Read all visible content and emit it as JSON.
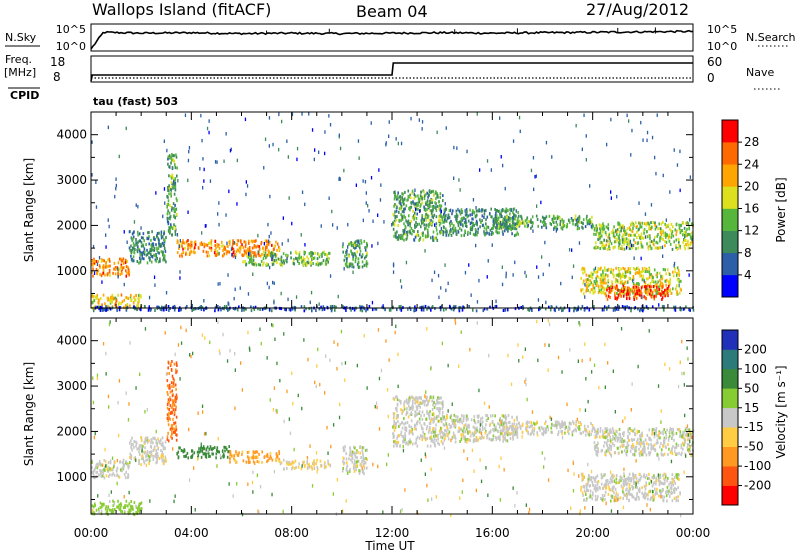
{
  "header": {
    "station": "Wallops Island (fitACF)",
    "beam": "Beam 04",
    "date": "27/Aug/2012"
  },
  "strip": {
    "left_label_1": "N.Sky",
    "right_label_1": "N.Search",
    "left_label_2a": "Freq.",
    "left_label_2b": "[MHz]",
    "cpid_label": "CPID",
    "right_label_2": "Nave",
    "noise_ticks_left": [
      "10^5",
      "10^0"
    ],
    "noise_ticks_right": [
      "10^5",
      "10^0"
    ],
    "freq_ticks": [
      "18",
      "8"
    ],
    "nave_ticks": [
      "60",
      "0"
    ],
    "cpid_text": "tau (fast) 503"
  },
  "axes": {
    "xlabel": "Time UT",
    "ylabel": "Slant Range [km]",
    "x_ticks": [
      "00:00",
      "04:00",
      "08:00",
      "12:00",
      "16:00",
      "20:00",
      "00:00"
    ],
    "y_ticks": [
      "1000",
      "2000",
      "3000",
      "4000"
    ]
  },
  "colorbars": {
    "power": {
      "label": "Power [dB]",
      "ticks": [
        "4",
        "8",
        "12",
        "16",
        "20",
        "24",
        "28"
      ],
      "colors": [
        "#0000ff",
        "#2c5fa8",
        "#3d8a5a",
        "#56b63c",
        "#dde01e",
        "#ffa500",
        "#ff6a00",
        "#ff0000"
      ]
    },
    "velocity": {
      "label": "Velocity [m s⁻¹]",
      "ticks": [
        "200",
        "100",
        "50",
        "15",
        "-15",
        "-50",
        "-100",
        "-200"
      ],
      "colors": [
        "#2030b8",
        "#2d7a7a",
        "#3a8a3a",
        "#88cc33",
        "#c8c8c8",
        "#ffcc44",
        "#ff9922",
        "#ff5511",
        "#ff0000"
      ]
    }
  },
  "chart_data": [
    {
      "type": "line",
      "title": "N.Sky / N.Search",
      "x_range": [
        0,
        24
      ],
      "series": [
        {
          "name": "N.Sky",
          "x": [
            0,
            0.5,
            2,
            4,
            6,
            8,
            10,
            12,
            14,
            16,
            18,
            20,
            22,
            24
          ],
          "y": [
            0,
            3.8,
            3.6,
            3.7,
            3.5,
            3.6,
            3.5,
            3.6,
            3.7,
            3.6,
            3.7,
            3.8,
            3.9,
            4.0
          ]
        }
      ]
    },
    {
      "type": "line",
      "title": "Freq / Nave",
      "x_range": [
        0,
        24
      ],
      "series": [
        {
          "name": "Freq.",
          "x": [
            0,
            0.05,
            12,
            12.05,
            24
          ],
          "y": [
            8,
            10.5,
            10.5,
            15.5,
            15.5
          ]
        },
        {
          "name": "Nave",
          "x": [
            0,
            24
          ],
          "y": [
            8,
            8
          ]
        }
      ]
    },
    {
      "type": "heatmap",
      "title": "Power [dB]",
      "x_range": [
        0,
        24
      ],
      "y_range": [
        180,
        4500
      ],
      "regions": [
        {
          "time": [
            0.0,
            1.5
          ],
          "range": [
            900,
            1300
          ],
          "value": 24
        },
        {
          "time": [
            1.5,
            3.0
          ],
          "range": [
            1200,
            1900
          ],
          "value": 10
        },
        {
          "time": [
            3.0,
            3.4
          ],
          "range": [
            1800,
            3600
          ],
          "value": 12
        },
        {
          "time": [
            3.4,
            7.5
          ],
          "range": [
            1350,
            1700
          ],
          "value": 24
        },
        {
          "time": [
            6.0,
            9.5
          ],
          "range": [
            1150,
            1450
          ],
          "value": 14
        },
        {
          "time": [
            10.0,
            11.0
          ],
          "range": [
            1100,
            1700
          ],
          "value": 12
        },
        {
          "time": [
            12.0,
            14.0
          ],
          "range": [
            1700,
            2800
          ],
          "value": 12
        },
        {
          "time": [
            14.0,
            17.0
          ],
          "range": [
            1800,
            2400
          ],
          "value": 10
        },
        {
          "time": [
            16.0,
            20.0
          ],
          "range": [
            1950,
            2250
          ],
          "value": 12
        },
        {
          "time": [
            20.0,
            24.0
          ],
          "range": [
            1500,
            2100
          ],
          "value": 16
        },
        {
          "time": [
            19.5,
            23.5
          ],
          "range": [
            500,
            1100
          ],
          "value": 18
        },
        {
          "time": [
            20.5,
            23.0
          ],
          "range": [
            400,
            700
          ],
          "value": 28
        },
        {
          "time": [
            0.0,
            2.0
          ],
          "range": [
            200,
            500
          ],
          "value": 20
        },
        {
          "time": [
            0.0,
            24.0
          ],
          "range": [
            150,
            250
          ],
          "value": 6
        }
      ]
    },
    {
      "type": "heatmap",
      "title": "Velocity [m s⁻¹]",
      "x_range": [
        0,
        24
      ],
      "y_range": [
        180,
        4500
      ],
      "regions": [
        {
          "time": [
            0.0,
            1.5
          ],
          "range": [
            1000,
            1400
          ],
          "value": 0
        },
        {
          "time": [
            1.5,
            3.0
          ],
          "range": [
            1300,
            1900
          ],
          "value": 0
        },
        {
          "time": [
            3.0,
            3.4
          ],
          "range": [
            1800,
            3600
          ],
          "value": -100
        },
        {
          "time": [
            3.4,
            5.5
          ],
          "range": [
            1450,
            1700
          ],
          "value": 80
        },
        {
          "time": [
            5.5,
            7.5
          ],
          "range": [
            1350,
            1600
          ],
          "value": -60
        },
        {
          "time": [
            7.5,
            9.5
          ],
          "range": [
            1200,
            1400
          ],
          "value": -20
        },
        {
          "time": [
            10.0,
            11.0
          ],
          "range": [
            1100,
            1700
          ],
          "value": 0
        },
        {
          "time": [
            12.0,
            14.0
          ],
          "range": [
            1700,
            2800
          ],
          "value": 0
        },
        {
          "time": [
            14.0,
            17.0
          ],
          "range": [
            1800,
            2400
          ],
          "value": 0
        },
        {
          "time": [
            16.0,
            20.0
          ],
          "range": [
            1950,
            2250
          ],
          "value": 0
        },
        {
          "time": [
            20.0,
            24.0
          ],
          "range": [
            1500,
            2100
          ],
          "value": 0
        },
        {
          "time": [
            19.5,
            23.5
          ],
          "range": [
            500,
            1100
          ],
          "value": 0
        },
        {
          "time": [
            0.0,
            2.0
          ],
          "range": [
            200,
            500
          ],
          "value": 30
        }
      ]
    }
  ]
}
